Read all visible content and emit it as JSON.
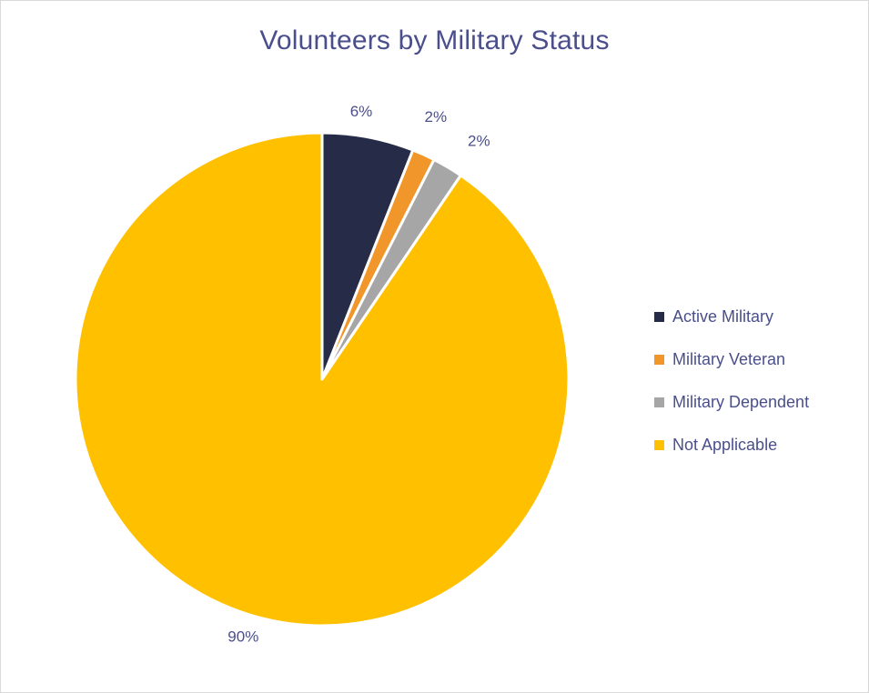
{
  "chart_data": {
    "type": "pie",
    "title": "Volunteers by Military Status",
    "slices": [
      {
        "name": "Active Military",
        "value": 6,
        "label": "6%",
        "color": "#262b47"
      },
      {
        "name": "Military Veteran",
        "value": 1.5,
        "label": "2%",
        "color": "#f0962a"
      },
      {
        "name": "Military Dependent",
        "value": 2,
        "label": "2%",
        "color": "#a6a6a6"
      },
      {
        "name": "Not Applicable",
        "value": 90.5,
        "label": "90%",
        "color": "#ffc000"
      }
    ],
    "legend_position": "right",
    "text_color": "#4a4f8c"
  }
}
